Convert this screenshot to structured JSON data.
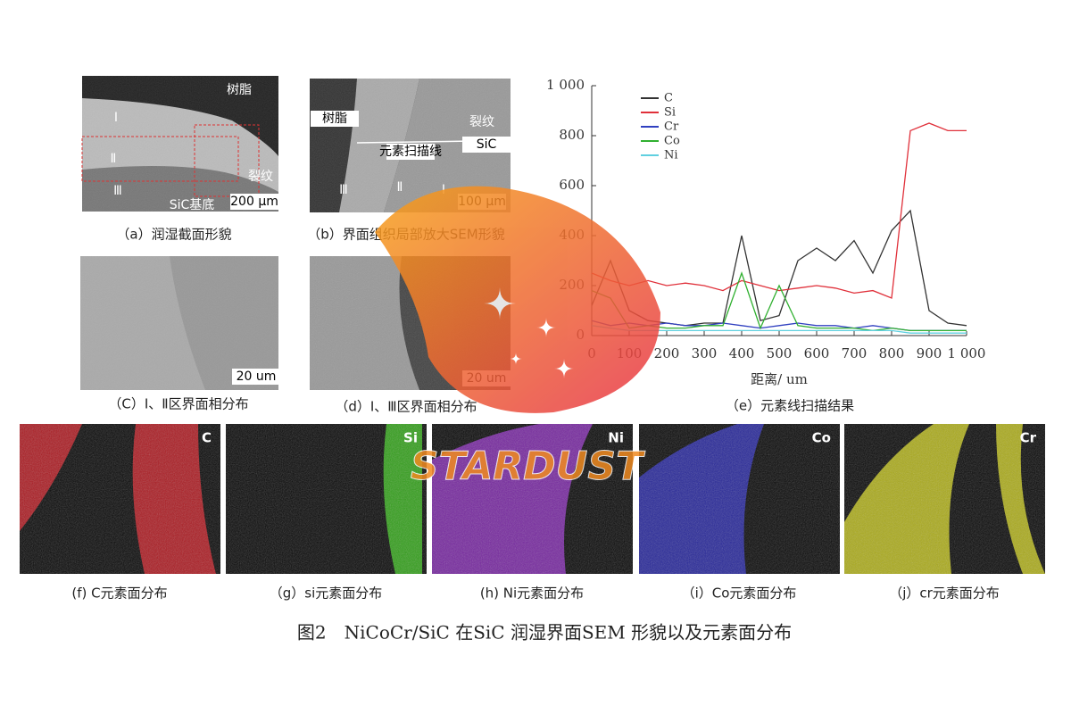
{
  "panels": [
    {
      "caption": "（a）润湿截面形貌",
      "labels": [
        "树脂",
        "Ⅰ",
        "Ⅱ",
        "Ⅲ",
        "裂纹",
        "SiC基底",
        "200 μm"
      ]
    },
    {
      "caption": "（b）界面组织局部放大SEM形貌",
      "labels": [
        "树脂",
        "裂纹",
        "SiC",
        "元素扫描线",
        "Ⅲ",
        "Ⅱ",
        "Ⅰ",
        "100 μm"
      ]
    },
    {
      "caption": "（C）Ⅰ、Ⅱ区界面相分布",
      "labels": [
        "20 um"
      ]
    },
    {
      "caption": "（d）Ⅰ、Ⅲ区界面相分布",
      "labels": [
        "20 um"
      ]
    }
  ],
  "chart_data": {
    "type": "line",
    "title": "（e）元素线扫描结果",
    "xlabel": "距离/ um",
    "x": [
      0,
      50,
      100,
      150,
      200,
      250,
      300,
      350,
      400,
      450,
      500,
      550,
      600,
      650,
      700,
      750,
      800,
      850,
      900,
      950,
      1000
    ],
    "series": [
      {
        "name": "C",
        "color": "#333333",
        "values": [
          120,
          300,
          100,
          60,
          50,
          40,
          50,
          50,
          400,
          60,
          80,
          300,
          350,
          300,
          380,
          250,
          420,
          500,
          100,
          50,
          40
        ]
      },
      {
        "name": "Si",
        "color": "#e0303a",
        "values": [
          250,
          220,
          200,
          220,
          200,
          210,
          200,
          180,
          220,
          200,
          180,
          190,
          200,
          190,
          170,
          180,
          150,
          820,
          850,
          820,
          820
        ]
      },
      {
        "name": "Cr",
        "color": "#3040c0",
        "values": [
          60,
          40,
          50,
          40,
          50,
          40,
          40,
          50,
          40,
          30,
          40,
          50,
          40,
          40,
          30,
          40,
          30,
          20,
          20,
          20,
          20
        ]
      },
      {
        "name": "Co",
        "color": "#30b030",
        "values": [
          180,
          150,
          30,
          40,
          30,
          30,
          40,
          40,
          250,
          30,
          200,
          40,
          30,
          30,
          30,
          20,
          30,
          20,
          20,
          20,
          20
        ]
      },
      {
        "name": "Ni",
        "color": "#60d0e0",
        "values": [
          40,
          30,
          20,
          20,
          20,
          20,
          20,
          20,
          20,
          20,
          20,
          20,
          20,
          20,
          20,
          20,
          20,
          10,
          10,
          10,
          10
        ]
      }
    ],
    "xlim": [
      0,
      1000
    ],
    "ylim": [
      0,
      1000
    ],
    "xticks": [
      0,
      100,
      200,
      300,
      400,
      500,
      600,
      700,
      800,
      900,
      {
        "value": 1000,
        "label": "1 000"
      }
    ],
    "yticks": [
      0,
      200,
      400,
      600,
      800,
      {
        "value": 1000,
        "label": "1 000"
      }
    ]
  },
  "maps": [
    {
      "element": "C",
      "caption": "(f) C元素面分布"
    },
    {
      "element": "Si",
      "caption": "（g）si元素面分布"
    },
    {
      "element": "Ni",
      "caption": "(h) Ni元素面分布"
    },
    {
      "element": "Co",
      "caption": "（i）Co元素面分布"
    },
    {
      "element": "Cr",
      "caption": "（j）cr元素面分布"
    }
  ],
  "figure_caption": "图2　NiCoCr/SiC 在SiC 润湿界面SEM 形貌以及元素面分布",
  "watermark": "STARDUST"
}
